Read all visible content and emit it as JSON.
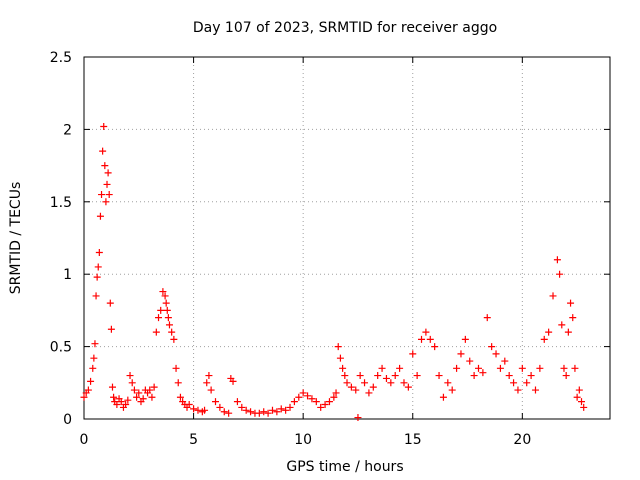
{
  "chart_data": {
    "type": "scatter",
    "title": "Day 107 of 2023, SRMTID for receiver aggo",
    "xlabel": "GPS time / hours",
    "ylabel": "SRMTID / TECUs",
    "xlim": [
      0,
      24
    ],
    "ylim": [
      0,
      2.5
    ],
    "x_ticks": [
      0,
      5,
      10,
      15,
      20
    ],
    "x_tick_labels": [
      "0",
      "5",
      "10",
      "15",
      "20"
    ],
    "y_ticks": [
      0,
      0.5,
      1,
      1.5,
      2,
      2.5
    ],
    "y_tick_labels": [
      "0",
      "0.5",
      "1",
      "1.5",
      "2",
      "2.5"
    ],
    "grid": true,
    "marker": "plus",
    "marker_color": "#ff0000",
    "series": [
      {
        "name": "SRMTID",
        "x": [
          0.0,
          0.1,
          0.2,
          0.3,
          0.4,
          0.45,
          0.5,
          0.55,
          0.6,
          0.65,
          0.7,
          0.75,
          0.8,
          0.85,
          0.9,
          0.95,
          1.0,
          1.05,
          1.1,
          1.15,
          1.2,
          1.25,
          1.3,
          1.35,
          1.4,
          1.5,
          1.6,
          1.7,
          1.8,
          1.9,
          2.0,
          2.1,
          2.2,
          2.3,
          2.4,
          2.5,
          2.6,
          2.7,
          2.8,
          2.9,
          3.0,
          3.1,
          3.2,
          3.3,
          3.4,
          3.5,
          3.6,
          3.7,
          3.75,
          3.8,
          3.85,
          3.9,
          4.0,
          4.1,
          4.2,
          4.3,
          4.4,
          4.5,
          4.6,
          4.7,
          4.8,
          5.0,
          5.2,
          5.4,
          5.5,
          5.6,
          5.7,
          5.8,
          6.0,
          6.2,
          6.4,
          6.6,
          6.7,
          6.8,
          7.0,
          7.2,
          7.4,
          7.6,
          7.8,
          8.0,
          8.2,
          8.4,
          8.6,
          8.8,
          9.0,
          9.2,
          9.4,
          9.6,
          9.8,
          10.0,
          10.2,
          10.4,
          10.6,
          10.8,
          11.0,
          11.2,
          11.4,
          11.5,
          11.6,
          11.7,
          11.8,
          11.9,
          12.0,
          12.2,
          12.4,
          12.5,
          12.6,
          12.8,
          13.0,
          13.2,
          13.4,
          13.6,
          13.8,
          14.0,
          14.2,
          14.4,
          14.6,
          14.8,
          15.0,
          15.2,
          15.4,
          15.6,
          15.8,
          16.0,
          16.2,
          16.4,
          16.6,
          16.8,
          17.0,
          17.2,
          17.4,
          17.6,
          17.8,
          18.0,
          18.2,
          18.4,
          18.6,
          18.8,
          19.0,
          19.2,
          19.4,
          19.6,
          19.8,
          20.0,
          20.2,
          20.4,
          20.6,
          20.8,
          21.0,
          21.2,
          21.4,
          21.6,
          21.7,
          21.8,
          21.9,
          22.0,
          22.1,
          22.2,
          22.3,
          22.4,
          22.5,
          22.6,
          22.7,
          22.8
        ],
        "y": [
          0.15,
          0.18,
          0.2,
          0.26,
          0.35,
          0.42,
          0.52,
          0.85,
          0.98,
          1.05,
          1.15,
          1.4,
          1.55,
          1.85,
          2.02,
          1.75,
          1.5,
          1.62,
          1.7,
          1.55,
          0.8,
          0.62,
          0.22,
          0.15,
          0.12,
          0.1,
          0.14,
          0.12,
          0.08,
          0.1,
          0.13,
          0.3,
          0.25,
          0.2,
          0.15,
          0.18,
          0.12,
          0.14,
          0.2,
          0.18,
          0.2,
          0.15,
          0.22,
          0.6,
          0.7,
          0.75,
          0.88,
          0.85,
          0.8,
          0.75,
          0.7,
          0.65,
          0.6,
          0.55,
          0.35,
          0.25,
          0.15,
          0.12,
          0.1,
          0.08,
          0.1,
          0.07,
          0.06,
          0.05,
          0.06,
          0.25,
          0.3,
          0.2,
          0.12,
          0.08,
          0.05,
          0.04,
          0.28,
          0.26,
          0.12,
          0.08,
          0.06,
          0.05,
          0.04,
          0.04,
          0.05,
          0.04,
          0.06,
          0.05,
          0.07,
          0.06,
          0.08,
          0.12,
          0.15,
          0.18,
          0.16,
          0.14,
          0.12,
          0.08,
          0.1,
          0.12,
          0.15,
          0.18,
          0.5,
          0.42,
          0.35,
          0.3,
          0.25,
          0.22,
          0.2,
          0.01,
          0.3,
          0.25,
          0.18,
          0.22,
          0.3,
          0.35,
          0.28,
          0.25,
          0.3,
          0.35,
          0.25,
          0.22,
          0.45,
          0.3,
          0.55,
          0.6,
          0.55,
          0.5,
          0.3,
          0.15,
          0.25,
          0.2,
          0.35,
          0.45,
          0.55,
          0.4,
          0.3,
          0.35,
          0.32,
          0.7,
          0.5,
          0.45,
          0.35,
          0.4,
          0.3,
          0.25,
          0.2,
          0.35,
          0.25,
          0.3,
          0.2,
          0.35,
          0.55,
          0.6,
          0.85,
          1.1,
          1.0,
          0.65,
          0.35,
          0.3,
          0.6,
          0.8,
          0.7,
          0.35,
          0.15,
          0.2,
          0.12,
          0.08
        ]
      }
    ]
  }
}
